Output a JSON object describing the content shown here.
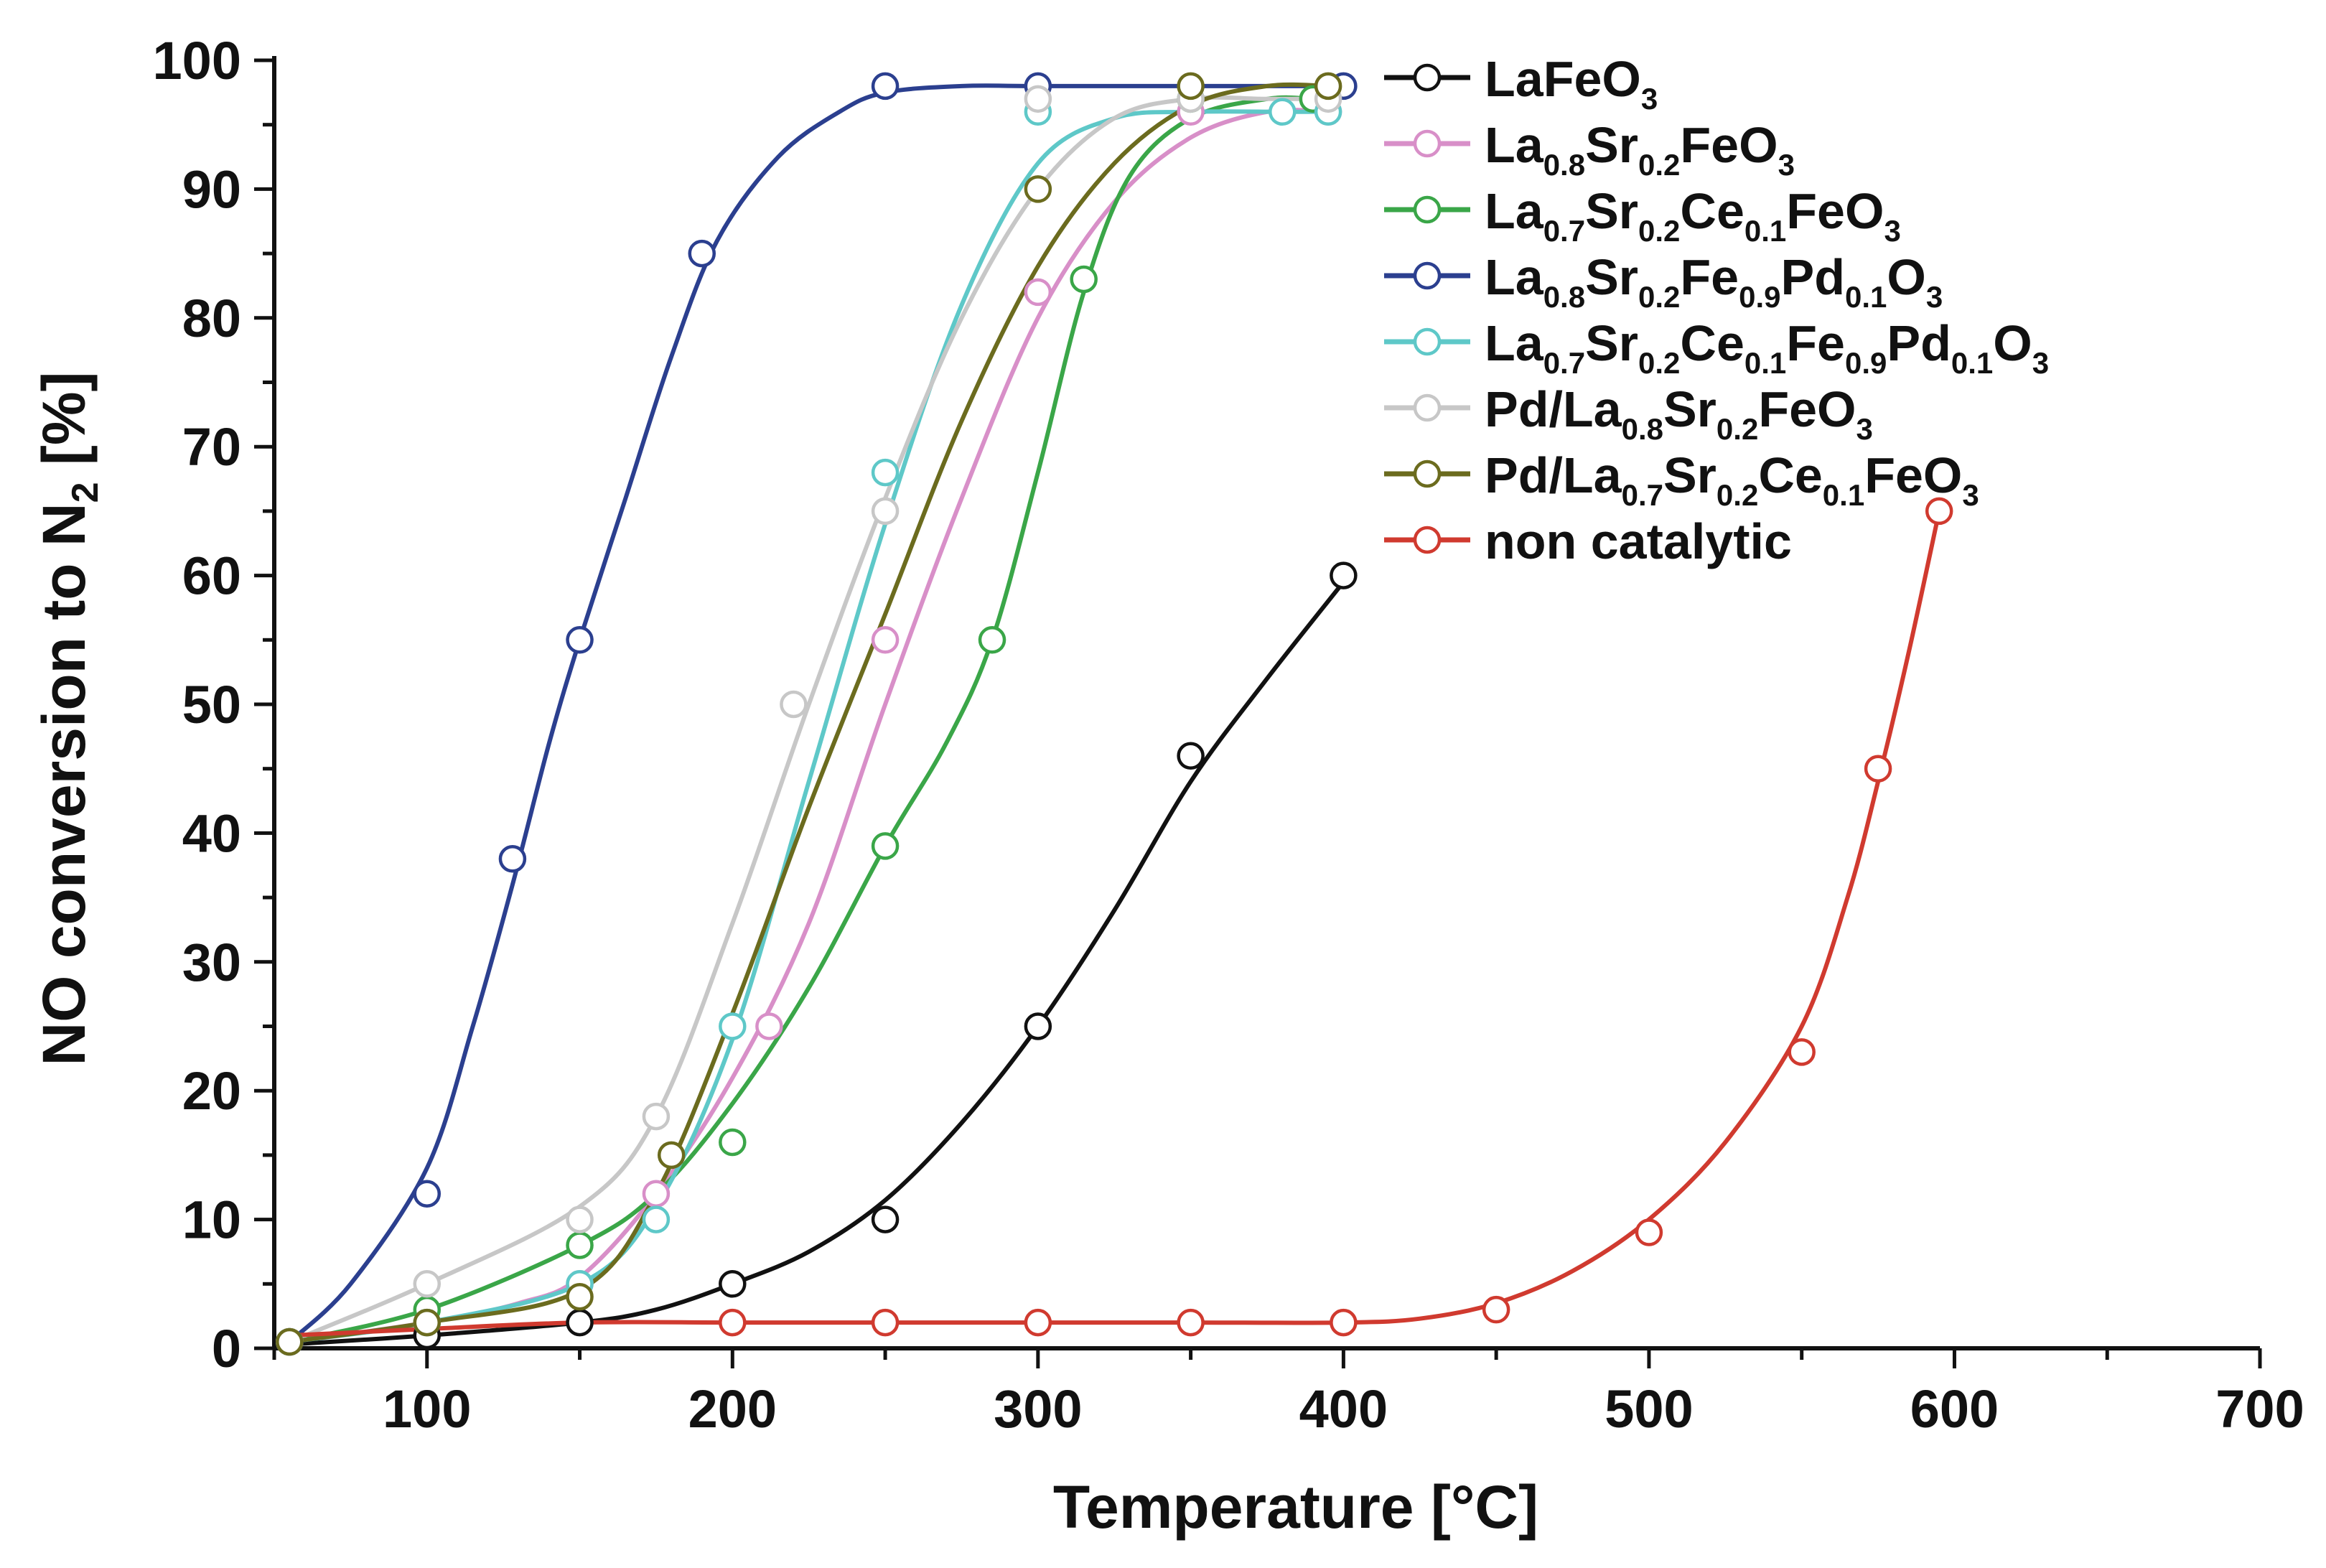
{
  "chart_data": {
    "type": "line",
    "title": "",
    "xlabel": "Temperature [°C]",
    "ylabel": {
      "main": "NO conversion to N",
      "sub": "2",
      "tail": " [%]"
    },
    "xlim": [
      50,
      700
    ],
    "ylim": [
      0,
      100
    ],
    "xticks": [
      100,
      200,
      300,
      400,
      500,
      600,
      700
    ],
    "yticks": [
      0,
      10,
      20,
      30,
      40,
      50,
      60,
      70,
      80,
      90,
      100
    ],
    "grid": false,
    "legend_position": "top-right",
    "series": [
      {
        "name": "LaFeO3",
        "label_parts": [
          {
            "t": "LaFeO"
          },
          {
            "t": "3",
            "sub": true
          }
        ],
        "color": "#111111",
        "points": [
          [
            55,
            0.5
          ],
          [
            100,
            1
          ],
          [
            150,
            2
          ],
          [
            200,
            5
          ],
          [
            250,
            10
          ],
          [
            300,
            25
          ],
          [
            350,
            46
          ],
          [
            400,
            60
          ]
        ],
        "curve": [
          [
            55,
            0.3
          ],
          [
            100,
            1
          ],
          [
            150,
            2
          ],
          [
            175,
            3
          ],
          [
            200,
            5
          ],
          [
            225,
            7.5
          ],
          [
            250,
            11.5
          ],
          [
            275,
            17.5
          ],
          [
            300,
            25
          ],
          [
            325,
            34
          ],
          [
            350,
            44
          ],
          [
            375,
            52
          ],
          [
            400,
            59.5
          ]
        ]
      },
      {
        "name": "La0.8Sr0.2FeO3",
        "label_parts": [
          {
            "t": "La"
          },
          {
            "t": "0.8",
            "sub": true
          },
          {
            "t": "Sr"
          },
          {
            "t": "0.2",
            "sub": true
          },
          {
            "t": "FeO"
          },
          {
            "t": "3",
            "sub": true
          }
        ],
        "color": "#d88fc8",
        "points": [
          [
            55,
            0.5
          ],
          [
            100,
            2
          ],
          [
            150,
            5
          ],
          [
            175,
            12
          ],
          [
            212,
            25
          ],
          [
            250,
            55
          ],
          [
            300,
            82
          ],
          [
            350,
            96
          ],
          [
            395,
            96
          ]
        ],
        "curve": [
          [
            55,
            0.5
          ],
          [
            100,
            2
          ],
          [
            130,
            3.5
          ],
          [
            150,
            5.5
          ],
          [
            175,
            12
          ],
          [
            200,
            21
          ],
          [
            225,
            33
          ],
          [
            250,
            50
          ],
          [
            275,
            66
          ],
          [
            300,
            80
          ],
          [
            325,
            89
          ],
          [
            350,
            94
          ],
          [
            375,
            96
          ],
          [
            395,
            96
          ]
        ]
      },
      {
        "name": "La0.7Sr0.2Ce0.1FeO3",
        "label_parts": [
          {
            "t": "La"
          },
          {
            "t": "0.7",
            "sub": true
          },
          {
            "t": "Sr"
          },
          {
            "t": "0.2",
            "sub": true
          },
          {
            "t": "Ce"
          },
          {
            "t": "0.1",
            "sub": true
          },
          {
            "t": "FeO"
          },
          {
            "t": "3",
            "sub": true
          }
        ],
        "color": "#3aa648",
        "points": [
          [
            55,
            0.5
          ],
          [
            100,
            3
          ],
          [
            150,
            8
          ],
          [
            200,
            16
          ],
          [
            250,
            39
          ],
          [
            285,
            55
          ],
          [
            315,
            83
          ],
          [
            350,
            97
          ],
          [
            390,
            97
          ]
        ],
        "curve": [
          [
            55,
            0.5
          ],
          [
            100,
            3
          ],
          [
            150,
            8
          ],
          [
            175,
            12
          ],
          [
            200,
            19
          ],
          [
            225,
            28
          ],
          [
            250,
            39
          ],
          [
            270,
            47
          ],
          [
            285,
            55
          ],
          [
            300,
            68
          ],
          [
            315,
            82
          ],
          [
            330,
            91
          ],
          [
            350,
            95.5
          ],
          [
            375,
            97
          ],
          [
            390,
            97
          ]
        ]
      },
      {
        "name": "La0.8Sr0.2Fe0.9Pd0.1O3",
        "label_parts": [
          {
            "t": "La"
          },
          {
            "t": "0.8",
            "sub": true
          },
          {
            "t": "Sr"
          },
          {
            "t": "0.2",
            "sub": true
          },
          {
            "t": "Fe"
          },
          {
            "t": "0.9",
            "sub": true
          },
          {
            "t": "Pd"
          },
          {
            "t": "0.1",
            "sub": true
          },
          {
            "t": "O"
          },
          {
            "t": "3",
            "sub": true
          }
        ],
        "color": "#2b3f8f",
        "points": [
          [
            55,
            0.5
          ],
          [
            100,
            12
          ],
          [
            128,
            38
          ],
          [
            150,
            55
          ],
          [
            190,
            85
          ],
          [
            250,
            98
          ],
          [
            300,
            98
          ],
          [
            400,
            98
          ]
        ],
        "curve": [
          [
            55,
            0.5
          ],
          [
            75,
            5
          ],
          [
            100,
            14
          ],
          [
            115,
            25
          ],
          [
            128,
            36
          ],
          [
            140,
            47
          ],
          [
            150,
            55
          ],
          [
            165,
            66
          ],
          [
            180,
            77
          ],
          [
            195,
            86
          ],
          [
            215,
            92.5
          ],
          [
            235,
            96
          ],
          [
            250,
            97.5
          ],
          [
            275,
            98
          ],
          [
            300,
            98
          ],
          [
            350,
            98
          ],
          [
            400,
            98
          ]
        ]
      },
      {
        "name": "La0.7Sr0.2Ce0.1Fe0.9Pd0.1O3",
        "label_parts": [
          {
            "t": "La"
          },
          {
            "t": "0.7",
            "sub": true
          },
          {
            "t": "Sr"
          },
          {
            "t": "0.2",
            "sub": true
          },
          {
            "t": "Ce"
          },
          {
            "t": "0.1",
            "sub": true
          },
          {
            "t": "Fe"
          },
          {
            "t": "0.9",
            "sub": true
          },
          {
            "t": "Pd"
          },
          {
            "t": "0.1",
            "sub": true
          },
          {
            "t": "O"
          },
          {
            "t": "3",
            "sub": true
          }
        ],
        "color": "#5ec8c8",
        "points": [
          [
            55,
            0.5
          ],
          [
            100,
            2
          ],
          [
            150,
            5
          ],
          [
            175,
            10
          ],
          [
            200,
            25
          ],
          [
            250,
            68
          ],
          [
            300,
            96
          ],
          [
            380,
            96
          ],
          [
            395,
            96
          ]
        ],
        "curve": [
          [
            55,
            0.5
          ],
          [
            100,
            2
          ],
          [
            150,
            5
          ],
          [
            175,
            11
          ],
          [
            200,
            24
          ],
          [
            225,
            44
          ],
          [
            250,
            64
          ],
          [
            275,
            81
          ],
          [
            300,
            92
          ],
          [
            325,
            95.5
          ],
          [
            350,
            96
          ],
          [
            380,
            96
          ],
          [
            395,
            96
          ]
        ]
      },
      {
        "name": "Pd/La0.8Sr0.2FeO3",
        "label_parts": [
          {
            "t": "Pd/La"
          },
          {
            "t": "0.8",
            "sub": true
          },
          {
            "t": "Sr"
          },
          {
            "t": "0.2",
            "sub": true
          },
          {
            "t": "FeO"
          },
          {
            "t": "3",
            "sub": true
          }
        ],
        "color": "#c7c7c7",
        "points": [
          [
            55,
            0.5
          ],
          [
            100,
            5
          ],
          [
            150,
            10
          ],
          [
            175,
            18
          ],
          [
            220,
            50
          ],
          [
            250,
            65
          ],
          [
            300,
            97
          ],
          [
            350,
            97
          ],
          [
            395,
            97
          ]
        ],
        "curve": [
          [
            55,
            0.5
          ],
          [
            100,
            5
          ],
          [
            150,
            11
          ],
          [
            175,
            18
          ],
          [
            200,
            33
          ],
          [
            225,
            50
          ],
          [
            250,
            66
          ],
          [
            275,
            80
          ],
          [
            300,
            90
          ],
          [
            325,
            95.5
          ],
          [
            350,
            97
          ],
          [
            375,
            97
          ],
          [
            395,
            97
          ]
        ]
      },
      {
        "name": "Pd/La0.7Sr0.2Ce0.1FeO3",
        "label_parts": [
          {
            "t": "Pd/La"
          },
          {
            "t": "0.7",
            "sub": true
          },
          {
            "t": "Sr"
          },
          {
            "t": "0.2",
            "sub": true
          },
          {
            "t": "Ce"
          },
          {
            "t": "0.1",
            "sub": true
          },
          {
            "t": "FeO"
          },
          {
            "t": "3",
            "sub": true
          }
        ],
        "color": "#6b6b1e",
        "points": [
          [
            55,
            0.5
          ],
          [
            100,
            2
          ],
          [
            150,
            4
          ],
          [
            180,
            15
          ],
          [
            300,
            90
          ],
          [
            350,
            98
          ],
          [
            395,
            98
          ]
        ],
        "curve": [
          [
            55,
            0.5
          ],
          [
            100,
            2
          ],
          [
            150,
            4.5
          ],
          [
            175,
            12
          ],
          [
            200,
            26
          ],
          [
            225,
            42
          ],
          [
            250,
            57
          ],
          [
            275,
            72
          ],
          [
            300,
            84
          ],
          [
            325,
            92
          ],
          [
            350,
            96.5
          ],
          [
            375,
            98
          ],
          [
            395,
            98
          ]
        ]
      },
      {
        "name": "non catalytic",
        "label_parts": [
          {
            "t": "non catalytic"
          }
        ],
        "color": "#d03a2f",
        "points": [
          [
            200,
            2
          ],
          [
            250,
            2
          ],
          [
            300,
            2
          ],
          [
            350,
            2
          ],
          [
            400,
            2
          ],
          [
            450,
            3
          ],
          [
            500,
            9
          ],
          [
            550,
            23
          ],
          [
            575,
            45
          ],
          [
            595,
            65
          ]
        ],
        "curve": [
          [
            55,
            1
          ],
          [
            100,
            1.5
          ],
          [
            150,
            2
          ],
          [
            200,
            2
          ],
          [
            250,
            2
          ],
          [
            300,
            2
          ],
          [
            350,
            2
          ],
          [
            400,
            2
          ],
          [
            425,
            2.3
          ],
          [
            450,
            3.5
          ],
          [
            475,
            6
          ],
          [
            500,
            10
          ],
          [
            525,
            16
          ],
          [
            550,
            25
          ],
          [
            565,
            35
          ],
          [
            575,
            44
          ],
          [
            585,
            54
          ],
          [
            595,
            65
          ]
        ]
      }
    ]
  }
}
